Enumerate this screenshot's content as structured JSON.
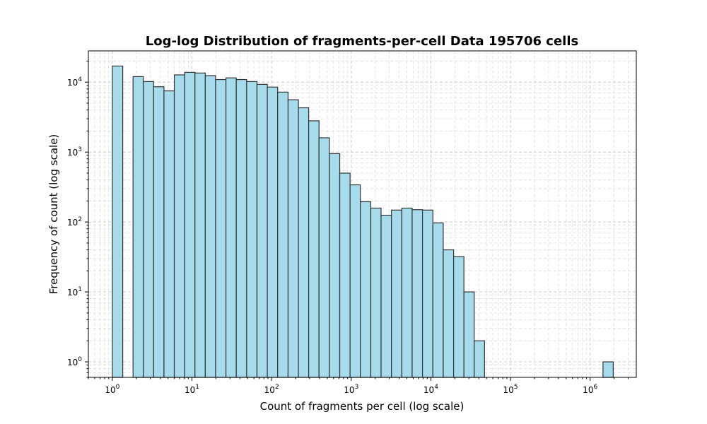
{
  "chart_data": {
    "type": "bar",
    "title": "Log-log Distribution of fragments-per-cell Data 195706 cells",
    "xlabel": "Count of fragments per cell (log scale)",
    "ylabel": "Frequency of count (log scale)",
    "x_scale": "log",
    "y_scale": "log",
    "xlim": [
      0.5,
      3800000
    ],
    "ylim": [
      0.6,
      28000
    ],
    "grid": true,
    "bar_color": "#a6dbec",
    "edge_color": "#333333",
    "x_ticks": [
      {
        "base": "10",
        "exp": "0"
      },
      {
        "base": "10",
        "exp": "1"
      },
      {
        "base": "10",
        "exp": "2"
      },
      {
        "base": "10",
        "exp": "3"
      },
      {
        "base": "10",
        "exp": "4"
      },
      {
        "base": "10",
        "exp": "5"
      },
      {
        "base": "10",
        "exp": "6"
      }
    ],
    "y_ticks": [
      {
        "base": "10",
        "exp": "0"
      },
      {
        "base": "10",
        "exp": "1"
      },
      {
        "base": "10",
        "exp": "2"
      },
      {
        "base": "10",
        "exp": "3"
      },
      {
        "base": "10",
        "exp": "4"
      }
    ],
    "bins": [
      {
        "x0": 1.0,
        "x1": 1.35,
        "count": 17000
      },
      {
        "x0": 1.82,
        "x1": 2.45,
        "count": 12000
      },
      {
        "x0": 2.45,
        "x1": 3.3,
        "count": 10200
      },
      {
        "x0": 3.3,
        "x1": 4.45,
        "count": 8600
      },
      {
        "x0": 4.45,
        "x1": 6.0,
        "count": 7500
      },
      {
        "x0": 6.0,
        "x1": 8.1,
        "count": 12700
      },
      {
        "x0": 8.1,
        "x1": 10.9,
        "count": 13800
      },
      {
        "x0": 10.9,
        "x1": 14.7,
        "count": 13500
      },
      {
        "x0": 14.7,
        "x1": 19.8,
        "count": 12400
      },
      {
        "x0": 19.8,
        "x1": 26.7,
        "count": 10900
      },
      {
        "x0": 26.7,
        "x1": 36.0,
        "count": 11500
      },
      {
        "x0": 36.0,
        "x1": 48.6,
        "count": 10900
      },
      {
        "x0": 48.6,
        "x1": 65.5,
        "count": 10200
      },
      {
        "x0": 65.5,
        "x1": 88.3,
        "count": 9300
      },
      {
        "x0": 88.3,
        "x1": 119,
        "count": 8500
      },
      {
        "x0": 119,
        "x1": 161,
        "count": 7200
      },
      {
        "x0": 161,
        "x1": 217,
        "count": 5600
      },
      {
        "x0": 217,
        "x1": 292,
        "count": 4300
      },
      {
        "x0": 292,
        "x1": 394,
        "count": 2800
      },
      {
        "x0": 394,
        "x1": 532,
        "count": 1600
      },
      {
        "x0": 532,
        "x1": 717,
        "count": 950
      },
      {
        "x0": 717,
        "x1": 967,
        "count": 500
      },
      {
        "x0": 967,
        "x1": 1300,
        "count": 340
      },
      {
        "x0": 1300,
        "x1": 1760,
        "count": 195
      },
      {
        "x0": 1760,
        "x1": 2370,
        "count": 158
      },
      {
        "x0": 2370,
        "x1": 3200,
        "count": 125
      },
      {
        "x0": 3200,
        "x1": 4320,
        "count": 148
      },
      {
        "x0": 4320,
        "x1": 5820,
        "count": 158
      },
      {
        "x0": 5820,
        "x1": 7850,
        "count": 150
      },
      {
        "x0": 7850,
        "x1": 10600,
        "count": 148
      },
      {
        "x0": 10600,
        "x1": 14300,
        "count": 97
      },
      {
        "x0": 14300,
        "x1": 19300,
        "count": 40
      },
      {
        "x0": 19300,
        "x1": 26000,
        "count": 32
      },
      {
        "x0": 26000,
        "x1": 35000,
        "count": 10
      },
      {
        "x0": 35000,
        "x1": 47200,
        "count": 2
      },
      {
        "x0": 1450000,
        "x1": 1950000,
        "count": 1
      }
    ]
  }
}
